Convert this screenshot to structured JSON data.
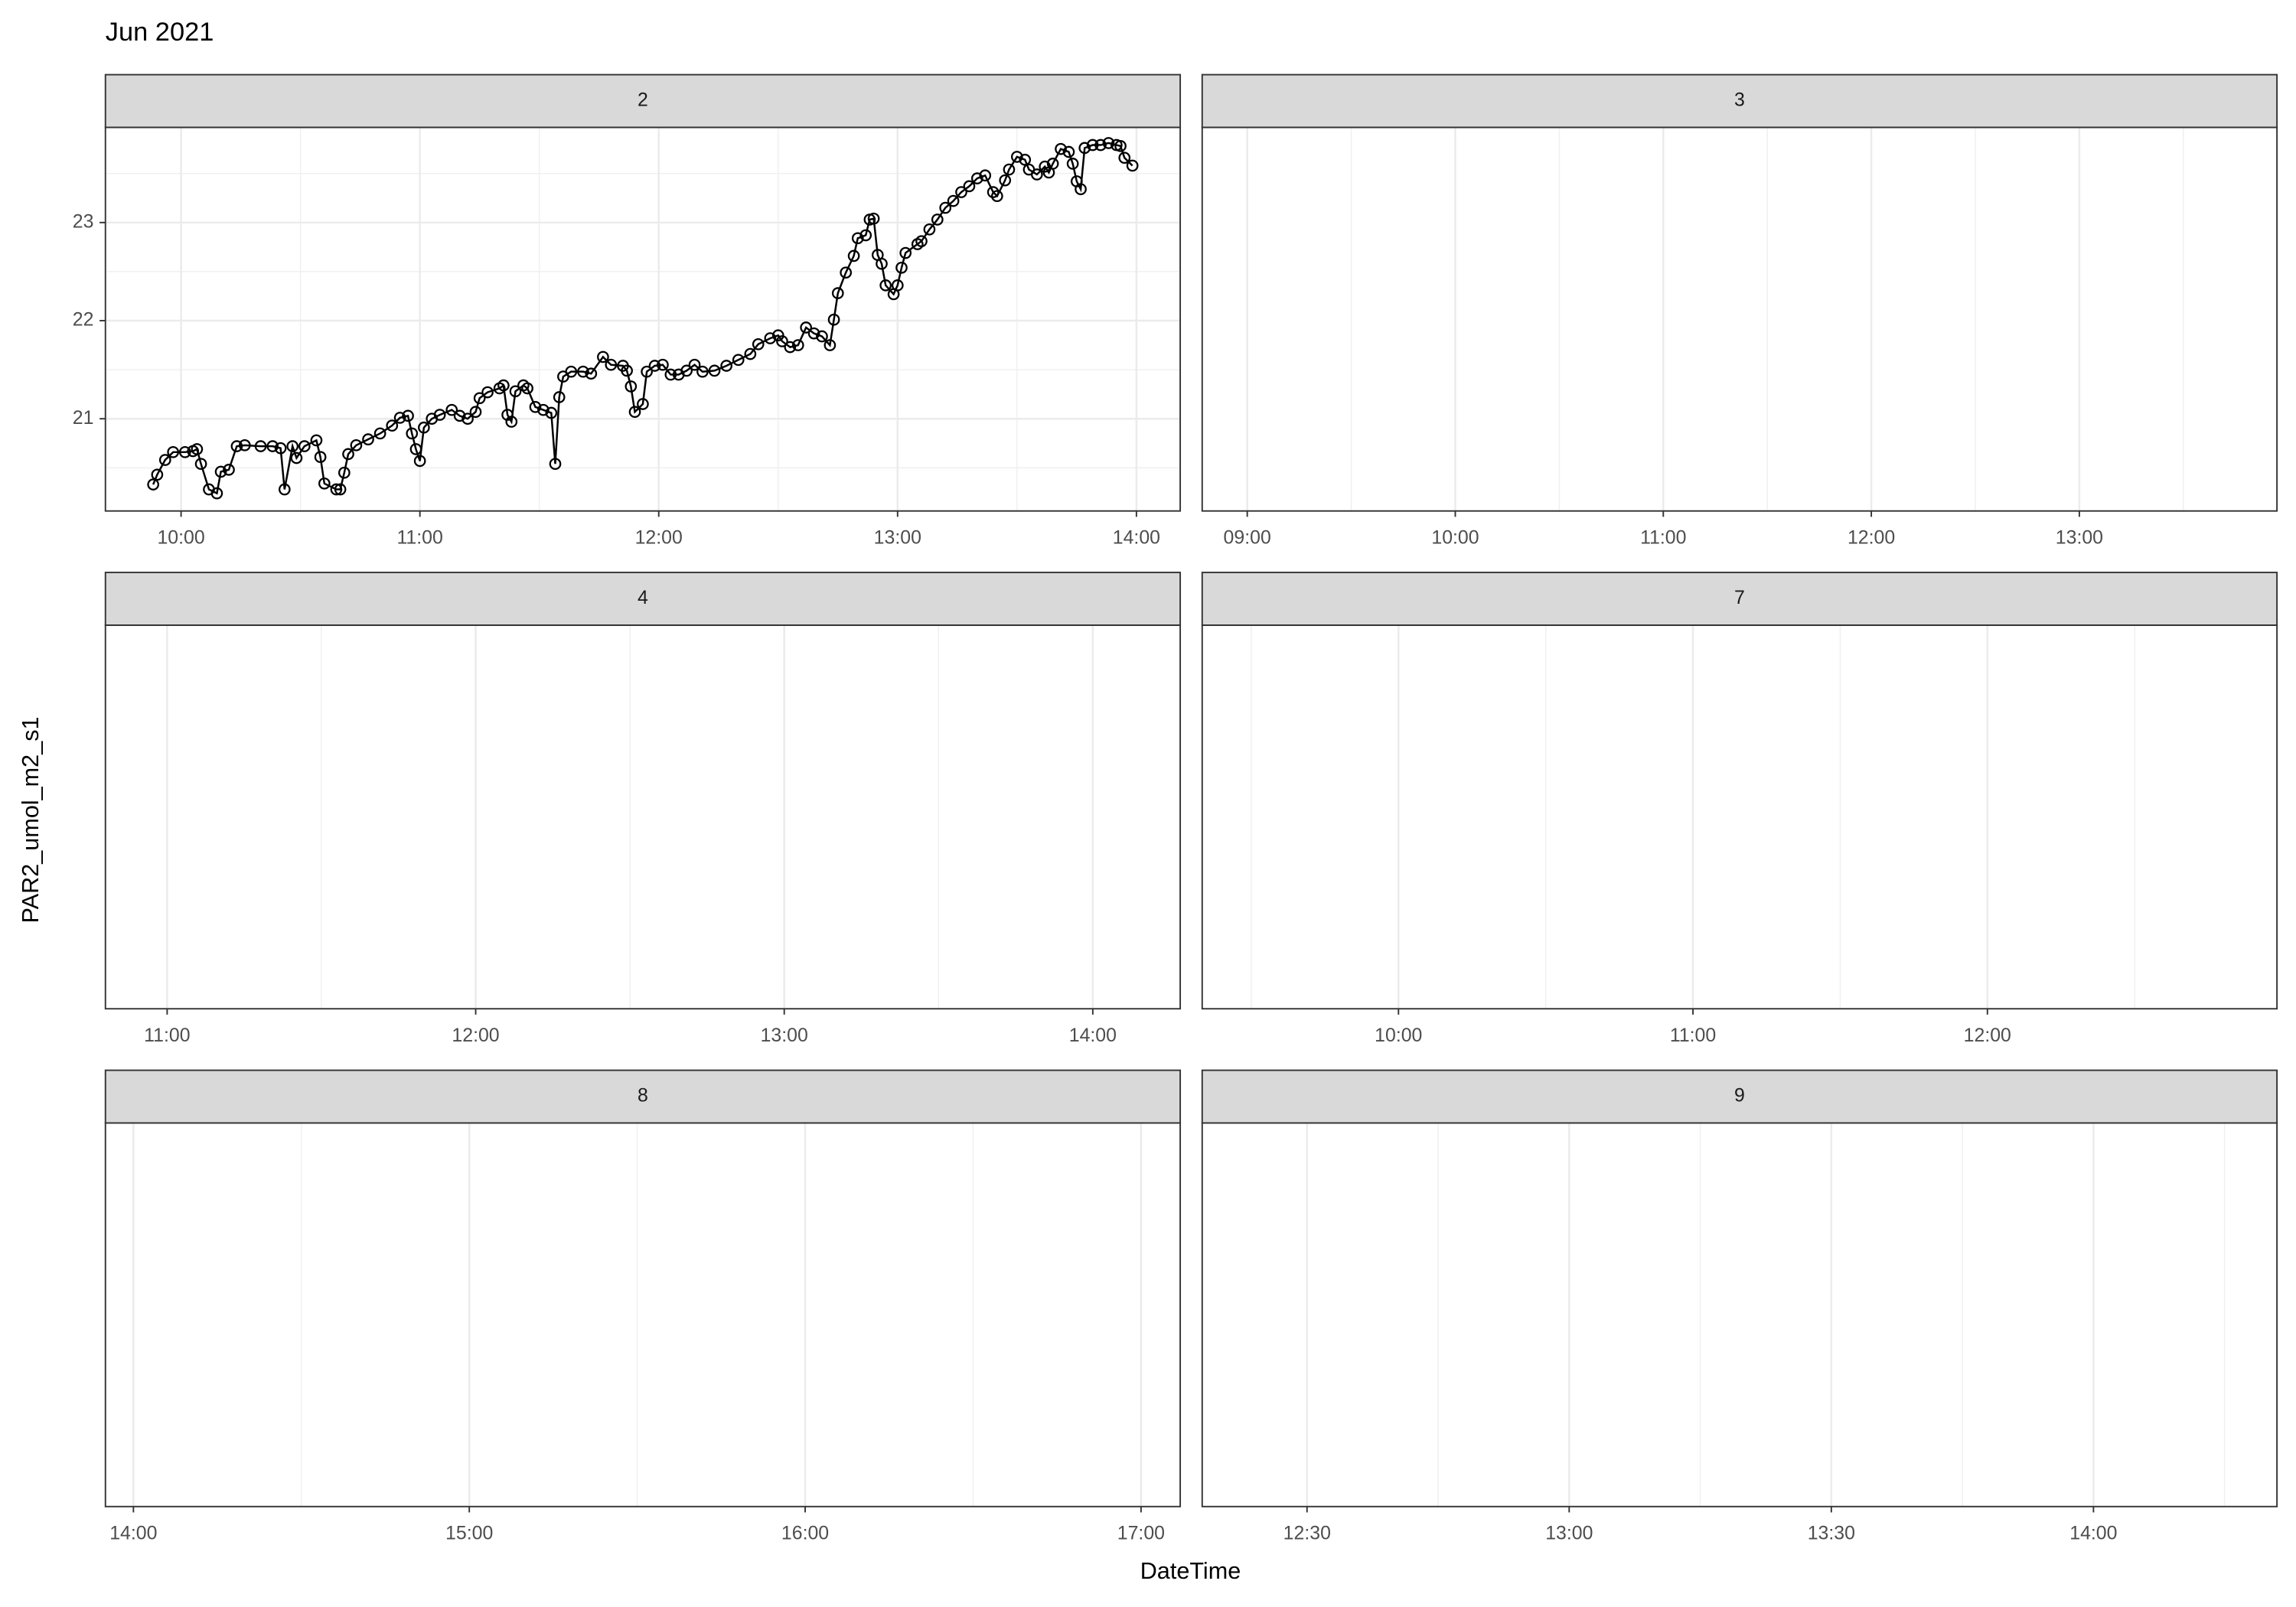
{
  "title": "Jun 2021",
  "x_label": "DateTime",
  "y_label": "PAR2_umol_m2_s1",
  "chart_data": [
    {
      "type": "line",
      "title": "2",
      "color": "#000000",
      "grid": true,
      "x": [
        "09:53",
        "09:54",
        "09:56",
        "09:58",
        "10:01",
        "10:03",
        "10:04",
        "10:05",
        "10:07",
        "10:09",
        "10:10",
        "10:12",
        "10:14",
        "10:16",
        "10:20",
        "10:23",
        "10:25",
        "10:26",
        "10:28",
        "10:29",
        "10:31",
        "10:34",
        "10:35",
        "10:36",
        "10:39",
        "10:40",
        "10:41",
        "10:42",
        "10:44",
        "10:47",
        "10:50",
        "10:53",
        "10:55",
        "10:57",
        "10:58",
        "10:59",
        "11:00",
        "11:01",
        "11:03",
        "11:05",
        "11:08",
        "11:10",
        "11:12",
        "11:14",
        "11:15",
        "11:17",
        "11:20",
        "11:21",
        "11:22",
        "11:23",
        "11:24",
        "11:26",
        "11:27",
        "11:29",
        "11:31",
        "11:33",
        "11:34",
        "11:35",
        "11:36",
        "11:38",
        "11:41",
        "11:43",
        "11:46",
        "11:48",
        "11:51",
        "11:52",
        "11:53",
        "11:54",
        "11:56",
        "11:57",
        "11:59",
        "12:01",
        "12:03",
        "12:05",
        "12:07",
        "12:09",
        "12:11",
        "12:14",
        "12:17",
        "12:20",
        "12:23",
        "12:25",
        "12:28",
        "12:30",
        "12:31",
        "12:33",
        "12:35",
        "12:37",
        "12:39",
        "12:41",
        "12:43",
        "12:44",
        "12:45",
        "12:47",
        "12:49",
        "12:50",
        "12:52",
        "12:53",
        "12:54",
        "12:55",
        "12:56",
        "12:57",
        "12:59",
        "13:00",
        "13:01",
        "13:02",
        "13:05",
        "13:06",
        "13:08",
        "13:10",
        "13:12",
        "13:14",
        "13:16",
        "13:18",
        "13:20",
        "13:22",
        "13:24",
        "13:25",
        "13:27",
        "13:28",
        "13:30",
        "13:32",
        "13:33",
        "13:35",
        "13:37",
        "13:38",
        "13:39",
        "13:41",
        "13:43",
        "13:44",
        "13:45",
        "13:46",
        "13:47",
        "13:49",
        "13:51",
        "13:53",
        "13:55",
        "13:56",
        "13:57",
        "13:59"
      ],
      "values": [
        20.33,
        20.43,
        20.58,
        20.66,
        20.66,
        20.67,
        20.69,
        20.54,
        20.28,
        20.24,
        20.46,
        20.48,
        20.72,
        20.73,
        20.72,
        20.72,
        20.7,
        20.28,
        20.72,
        20.6,
        20.72,
        20.78,
        20.61,
        20.34,
        20.28,
        20.28,
        20.45,
        20.64,
        20.73,
        20.79,
        20.85,
        20.93,
        21.01,
        21.03,
        20.85,
        20.69,
        20.57,
        20.91,
        21.0,
        21.04,
        21.09,
        21.03,
        21.0,
        21.07,
        21.21,
        21.27,
        21.31,
        21.34,
        21.04,
        20.97,
        21.28,
        21.34,
        21.31,
        21.12,
        21.09,
        21.06,
        20.54,
        21.22,
        21.43,
        21.48,
        21.48,
        21.46,
        21.63,
        21.55,
        21.54,
        21.49,
        21.33,
        21.07,
        21.15,
        21.48,
        21.54,
        21.55,
        21.45,
        21.45,
        21.49,
        21.55,
        21.48,
        21.49,
        21.54,
        21.6,
        21.66,
        21.76,
        21.82,
        21.85,
        21.79,
        21.73,
        21.75,
        21.93,
        21.87,
        21.84,
        21.75,
        22.01,
        22.28,
        22.49,
        22.66,
        22.84,
        22.87,
        23.03,
        23.04,
        22.67,
        22.58,
        22.36,
        22.27,
        22.36,
        22.54,
        22.69,
        22.78,
        22.81,
        22.93,
        23.03,
        23.15,
        23.22,
        23.31,
        23.37,
        23.45,
        23.48,
        23.31,
        23.27,
        23.43,
        23.54,
        23.67,
        23.64,
        23.54,
        23.49,
        23.57,
        23.51,
        23.6,
        23.75,
        23.72,
        23.6,
        23.42,
        23.34,
        23.76,
        23.79,
        23.79,
        23.81,
        23.79,
        23.78,
        23.66,
        23.58
      ],
      "xlim": [
        "09:41",
        "14:11"
      ],
      "xticks": [
        "10:00",
        "11:00",
        "12:00",
        "13:00",
        "14:00"
      ],
      "ylim": [
        20.06,
        23.97
      ],
      "yticks": [
        21,
        22,
        23
      ]
    },
    {
      "type": "line",
      "title": "3",
      "grid": true,
      "xlim": [
        "08:47",
        "13:57"
      ],
      "xticks": [
        "09:00",
        "10:00",
        "11:00",
        "12:00",
        "13:00"
      ]
    },
    {
      "type": "line",
      "title": "4",
      "grid": true,
      "xlim": [
        "10:48",
        "14:17"
      ],
      "xticks": [
        "11:00",
        "12:00",
        "13:00",
        "14:00"
      ]
    },
    {
      "type": "line",
      "title": "7",
      "grid": true,
      "xlim": [
        "09:20",
        "12:59"
      ],
      "xticks": [
        "10:00",
        "11:00",
        "12:00"
      ]
    },
    {
      "type": "line",
      "title": "8",
      "grid": true,
      "xlim": [
        "13:55",
        "17:07"
      ],
      "xticks": [
        "14:00",
        "15:00",
        "16:00",
        "17:00"
      ]
    },
    {
      "type": "line",
      "title": "9",
      "grid": true,
      "xlim": [
        "12:18",
        "14:21"
      ],
      "xticks": [
        "12:30",
        "13:00",
        "13:30",
        "14:00"
      ]
    }
  ]
}
